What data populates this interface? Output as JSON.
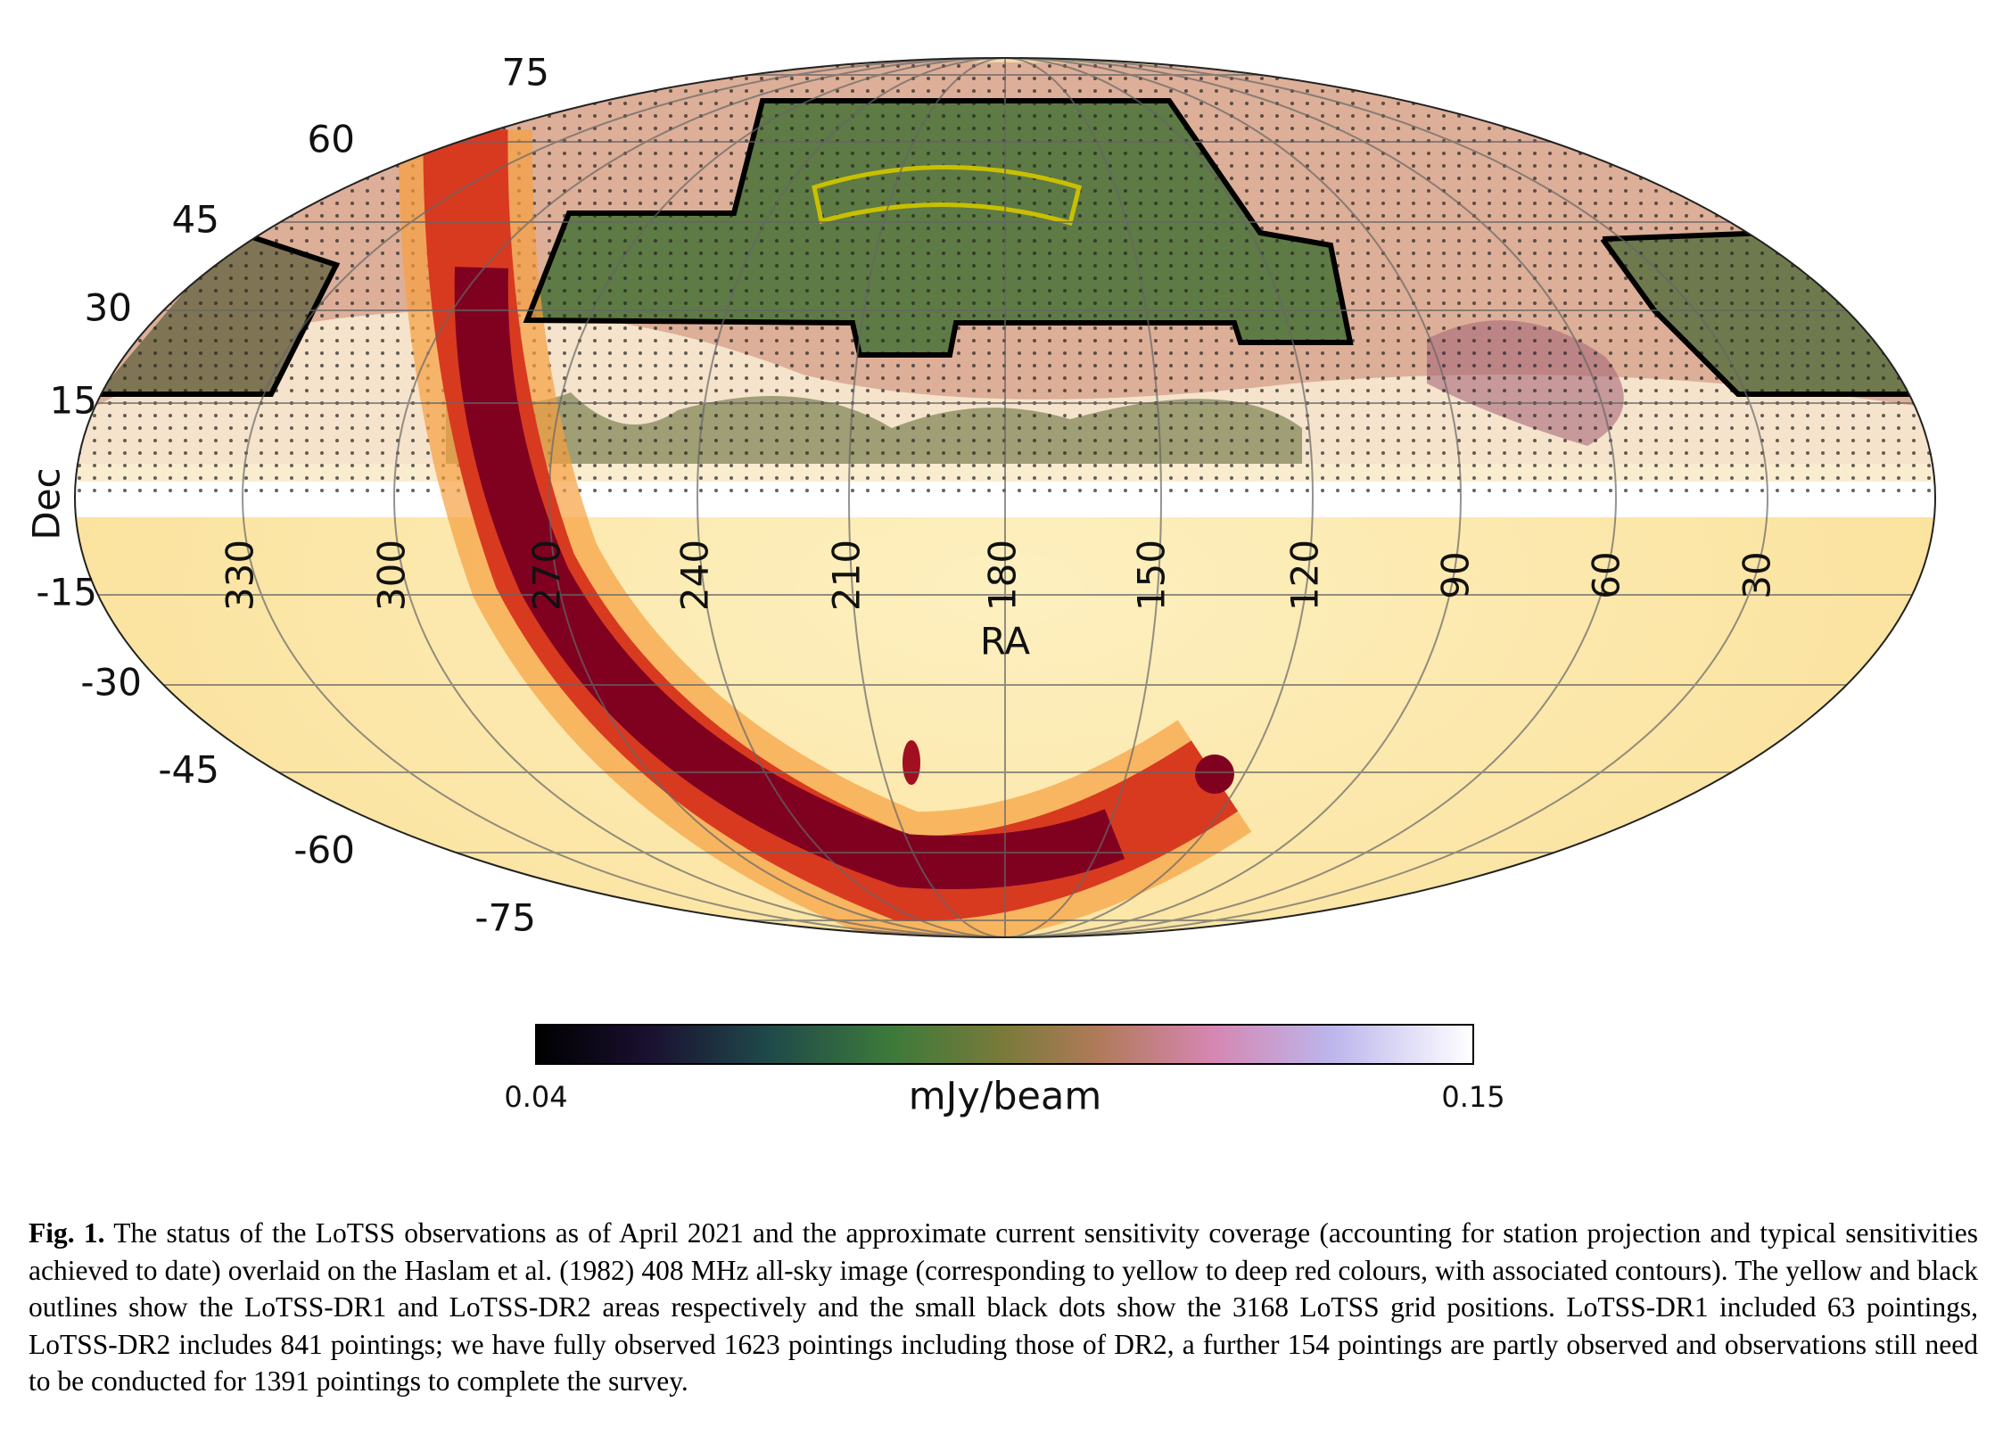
{
  "figure": {
    "dec_ticks": [
      "75",
      "60",
      "45",
      "30",
      "15",
      "-15",
      "-30",
      "-45",
      "-60",
      "-75"
    ],
    "ra_ticks": [
      "330",
      "300",
      "270",
      "240",
      "210",
      "180",
      "150",
      "120",
      "90",
      "60",
      "30"
    ],
    "x_label": "RA",
    "y_label": "Dec",
    "colorbar": {
      "min": "0.04",
      "max": "0.15",
      "label": "mJy/beam"
    }
  },
  "caption": {
    "label": "Fig. 1.",
    "text": "The status of the LoTSS observations as of April 2021 and the approximate current sensitivity coverage (accounting for station projection and typical sensitivities achieved to date) overlaid on the Haslam et al. (1982) 408 MHz all-sky image (corresponding to yellow to deep red colours, with associated contours). The yellow and black outlines show the LoTSS-DR1 and LoTSS-DR2 areas respectively and the small black dots show the 3168 LoTSS grid positions. LoTSS-DR1 included 63 pointings, LoTSS-DR2 includes 841 pointings; we have fully observed 1623 pointings including those of DR2, a further 154 pointings are partly observed and observations still need to be conducted for 1391 pointings to complete the survey."
  }
}
